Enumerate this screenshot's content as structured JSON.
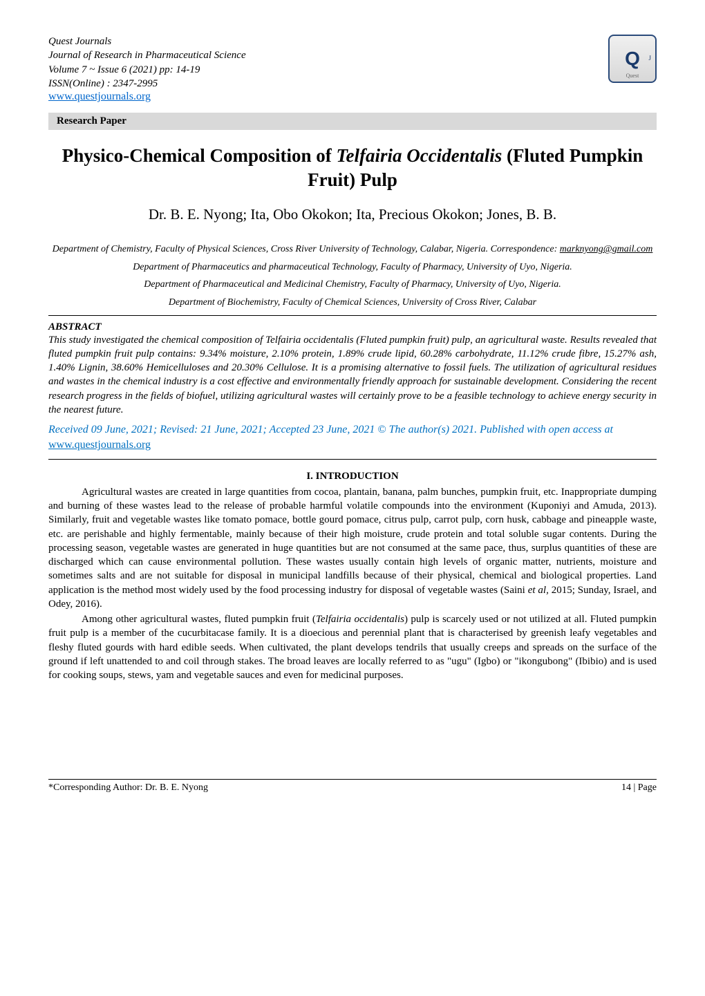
{
  "journal": {
    "name": "Quest Journals",
    "title": "Journal of Research in Pharmaceutical Science",
    "volume_issue": "Volume 7 ~ Issue 6 (2021) pp: 14-19",
    "issn": "ISSN(Online) : 2347-2995",
    "url": "www.questjournals.org"
  },
  "logo": {
    "letter": "Q",
    "side": "J",
    "brand": "Quest"
  },
  "bar": {
    "label": "Research Paper"
  },
  "paper": {
    "title_pre": "Physico-Chemical Composition of ",
    "title_species": "Telfairia Occidentalis",
    "title_post": " (Fluted Pumpkin Fruit) Pulp",
    "authors": "Dr. B. E. Nyong; Ita, Obo Okokon; Ita, Precious Okokon; Jones, B. B."
  },
  "affiliations": {
    "a1_pre": "Department of Chemistry, Faculty of Physical Sciences, Cross River University of Technology, Calabar, Nigeria. Correspondence: ",
    "a1_email": "marknyong@gmail.com",
    "a2": "Department of Pharmaceutics and pharmaceutical Technology, Faculty of Pharmacy, University of Uyo, Nigeria.",
    "a3": "Department of Pharmaceutical and Medicinal Chemistry, Faculty of Pharmacy, University of Uyo, Nigeria.",
    "a4": "Department of Biochemistry, Faculty of Chemical Sciences, University of Cross River, Calabar"
  },
  "abstract": {
    "heading": "ABSTRACT",
    "body": "This study investigated the chemical composition of Telfairia occidentalis (Fluted pumpkin fruit) pulp, an agricultural waste. Results revealed that fluted pumpkin fruit pulp contains: 9.34% moisture, 2.10% protein, 1.89% crude lipid, 60.28% carbohydrate, 11.12% crude fibre, 15.27% ash, 1.40% Lignin, 38.60% Hemicelluloses and 20.30% Cellulose. It is a promising alternative to fossil fuels. The utilization of agricultural residues and wastes in the chemical industry is a cost effective and environmentally friendly approach for sustainable development. Considering the recent research progress in the fields of biofuel, utilizing agricultural wastes will certainly prove to be a feasible technology to achieve energy security in the nearest future."
  },
  "received": {
    "text_pre": "Received 09 June, 2021; Revised: 21 June, 2021; Accepted 23 June, 2021 © The author(s) 2021. Published with open access at ",
    "link": "www.questjournals.org"
  },
  "section1": {
    "heading": "I.     INTRODUCTION"
  },
  "intro_p1_a": "Agricultural wastes are created in large quantities from cocoa, plantain, banana, palm bunches, pumpkin fruit, etc. Inappropriate dumping and burning of these wastes lead to the release of probable harmful volatile compounds into the environment (Kuponiyi and Amuda, 2013). Similarly, fruit and vegetable wastes like tomato pomace, bottle gourd pomace, citrus pulp, carrot pulp, corn husk, cabbage and pineapple waste, etc. are perishable and highly fermentable, mainly because of their high moisture, crude protein and total soluble sugar contents. During the processing season, vegetable wastes are generated in huge quantities but are not consumed at the same pace, thus, surplus quantities of these are discharged which can cause environmental pollution. These wastes usually contain high levels of organic matter, nutrients, moisture and sometimes salts and are not suitable for disposal in municipal landfills because of their physical, chemical and biological properties. Land application is the method most widely used by the food processing industry for disposal of vegetable wastes (Saini ",
  "intro_p1_b": "et al,",
  "intro_p1_c": " 2015; Sunday, Israel, and Odey, 2016).",
  "intro_p2_a": "Among other agricultural wastes, fluted pumpkin fruit (",
  "intro_p2_b": "Telfairia occidentalis",
  "intro_p2_c": ") pulp is scarcely used or not utilized at all. Fluted pumpkin fruit pulp is a member of the cucurbitacase family. It is a dioecious and perennial plant that is characterised by greenish leafy vegetables and fleshy fluted gourds with hard edible seeds. When cultivated, the plant develops tendrils that usually creeps and spreads on the surface of the ground if left unattended to and coil through stakes. The broad leaves are locally referred to as \"ugu\" (Igbo) or \"ikongubong\" (Ibibio) and is used for cooking soups, stews, yam and vegetable sauces and even for medicinal purposes.",
  "footer": {
    "left": "*Corresponding Author:  Dr. B. E. Nyong",
    "right": "14 | Page"
  },
  "colors": {
    "bar_bg": "#d9d9d9",
    "link_blue": "#0070c0",
    "url_blue": "#0066cc",
    "logo_border": "#2a4a7a",
    "text": "#000000",
    "background": "#ffffff"
  }
}
